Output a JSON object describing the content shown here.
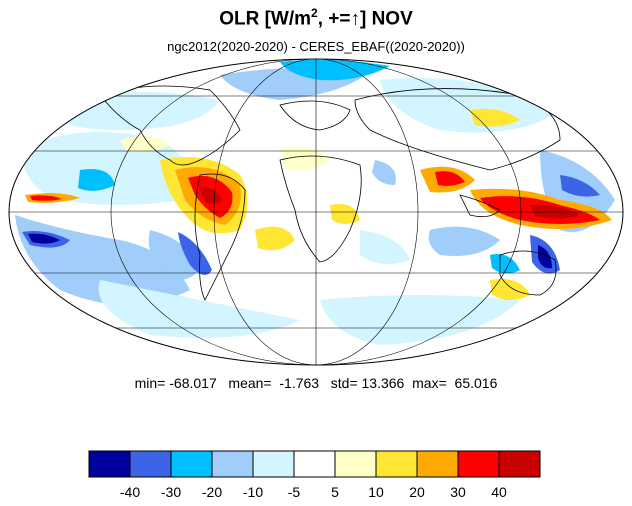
{
  "title": {
    "prefix": "OLR [W/m",
    "superscript": "2",
    "mid": ", +=",
    "arrow": "↑",
    "suffix": "] NOV"
  },
  "subtitle": "ngc2012(2020-2020) - CERES_EBAF((2020-2020))",
  "stats": {
    "min_label": "min=",
    "min": "-68.017",
    "mean_label": "mean=",
    "mean": "-1.763",
    "std_label": "std=",
    "std": "13.366",
    "max_label": "max=",
    "max": "65.016"
  },
  "colorbar": {
    "colors": [
      "#00009c",
      "#3c64e6",
      "#00bfff",
      "#a0cdfa",
      "#d2f5ff",
      "#ffffff",
      "#ffffc8",
      "#ffe632",
      "#ffaa00",
      "#ff0000",
      "#c80000"
    ],
    "labels": [
      "-40",
      "-30",
      "-20",
      "-10",
      "-5",
      "5",
      "10",
      "20",
      "30",
      "40"
    ]
  },
  "map": {
    "projection": "mollweide",
    "ocean_color": "#ffffff",
    "coastline_color": "#000000",
    "gridline_color": "#000000"
  }
}
